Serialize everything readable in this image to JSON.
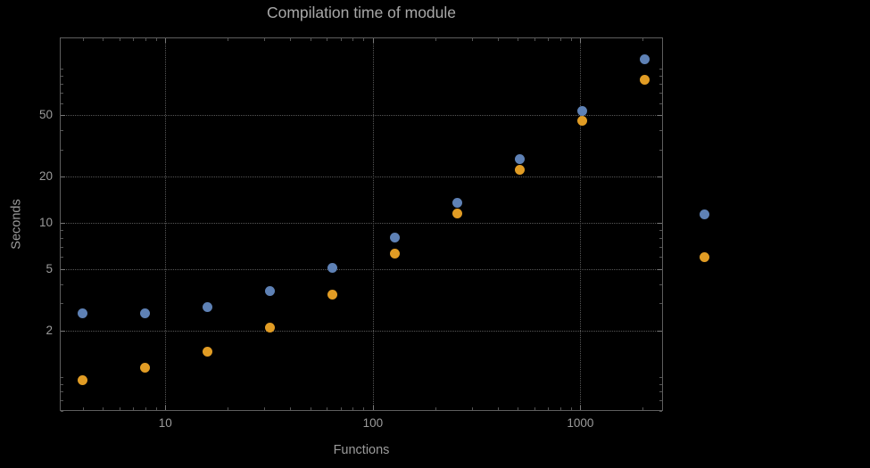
{
  "title": "Compilation time of module",
  "axes": {
    "xlabel": "Functions",
    "ylabel": "Seconds"
  },
  "colors": {
    "background": "#000000",
    "frame": "#5e5e5e",
    "grid": "#575757",
    "tick_text": "#9b9b9b",
    "title_text": "#a8a8a8",
    "series1": "#5e81b5",
    "series2": "#e19c24"
  },
  "chart_data": {
    "type": "scatter",
    "title": "Compilation time of module",
    "xlabel": "Functions",
    "ylabel": "Seconds",
    "xscale": "log",
    "yscale": "log",
    "xlim": [
      3.1,
      2500
    ],
    "ylim": [
      0.6,
      160
    ],
    "xticks": [
      10,
      100,
      1000
    ],
    "yticks": [
      2,
      5,
      10,
      20,
      50
    ],
    "grid": "dotted-at-major-ticks",
    "legend_position": "outside-right-unlabeled-markers",
    "x": [
      4,
      8,
      16,
      32,
      64,
      128,
      256,
      512,
      1024,
      2048
    ],
    "series": [
      {
        "name": "series-1",
        "color": "#5e81b5",
        "values": [
          2.6,
          2.6,
          2.85,
          3.6,
          5.1,
          8.0,
          13.5,
          26,
          53,
          115
        ]
      },
      {
        "name": "series-2",
        "color": "#e19c24",
        "values": [
          0.95,
          1.15,
          1.45,
          2.1,
          3.4,
          6.3,
          11.5,
          22,
          46,
          85
        ]
      }
    ]
  }
}
